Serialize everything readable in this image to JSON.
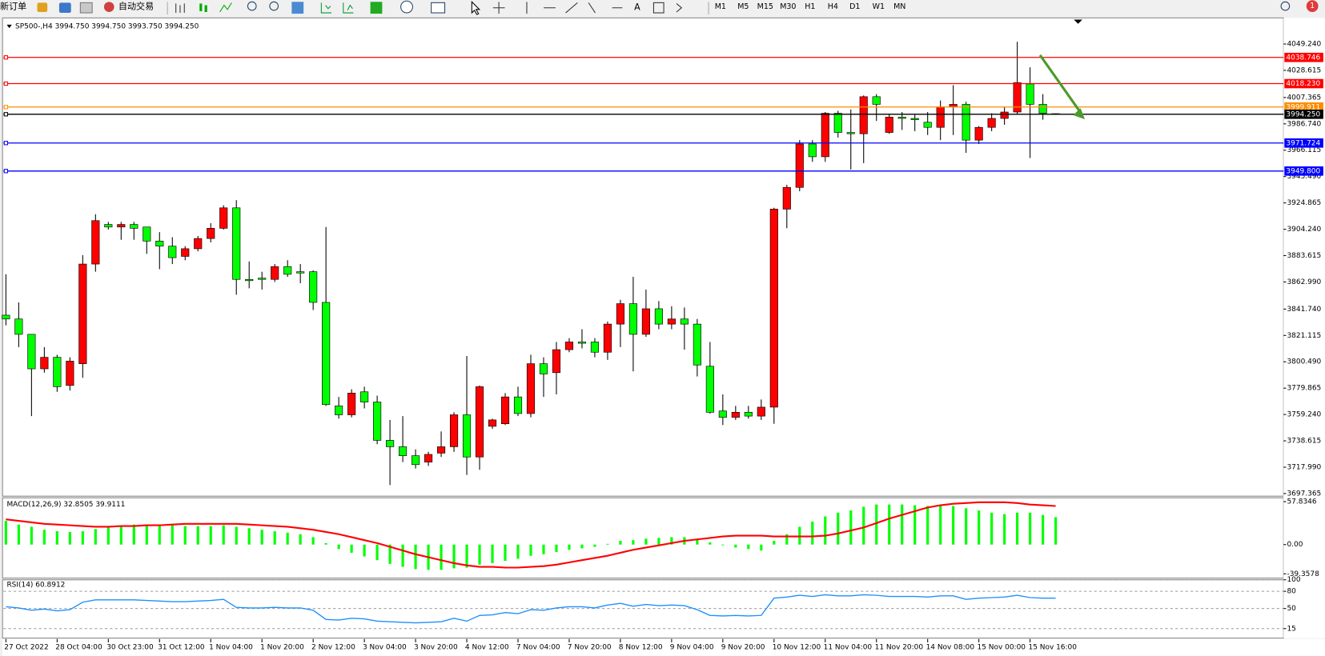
{
  "toolbar": {
    "new_order": "新订单",
    "auto_trading": "自动交易",
    "timeframes": [
      "M1",
      "M5",
      "M15",
      "M30",
      "H1",
      "H4",
      "D1",
      "W1",
      "MN"
    ],
    "notifications": "1"
  },
  "chart_data": [
    {
      "type": "candlestick",
      "title": "SP500-,H4  3994.750 3994.750 3993.750 3994.250",
      "categories": [
        "27 Oct 2022",
        null,
        null,
        null,
        "28 Oct 04:00",
        null,
        null,
        null,
        "30 Oct 23:00",
        null,
        null,
        null,
        "31 Oct 12:00",
        null,
        null,
        null,
        "1 Nov 04:00",
        null,
        null,
        null,
        "1 Nov 20:00",
        null,
        null,
        null,
        "2 Nov 12:00",
        null,
        null,
        null,
        "3 Nov 04:00",
        null,
        null,
        null,
        "3 Nov 20:00",
        null,
        null,
        null,
        "4 Nov 12:00",
        null,
        null,
        null,
        "7 Nov 04:00",
        null,
        null,
        null,
        "7 Nov 20:00",
        null,
        null,
        null,
        "8 Nov 12:00",
        null,
        null,
        null,
        "9 Nov 04:00",
        null,
        null,
        null,
        "9 Nov 20:00",
        null,
        null,
        null,
        "10 Nov 12:00",
        null,
        null,
        null,
        "11 Nov 04:00",
        null,
        null,
        null,
        "11 Nov 20:00",
        null,
        null,
        null,
        "14 Nov 08:00",
        null,
        null,
        null,
        "15 Nov 00:00",
        null,
        null,
        null,
        "15 Nov 16:00",
        null,
        null
      ],
      "open": [
        3837,
        3834,
        3822,
        3795,
        3804,
        3782,
        3799,
        3877,
        3908,
        3906,
        3908,
        3906,
        3895,
        3891,
        3883,
        3889,
        3897,
        3905,
        3921,
        3865,
        3866,
        3865,
        3875,
        3871,
        3871,
        3847,
        3766,
        3759,
        3777,
        3769,
        3739,
        3734,
        3727,
        3722,
        3729,
        3734,
        3759,
        3726,
        3750,
        3752,
        3773,
        3760,
        3799,
        3792,
        3810,
        3816,
        3816,
        3808,
        3830,
        3846,
        3822,
        3842,
        3830,
        3834,
        3830,
        3797,
        3762,
        3757,
        3761,
        3758,
        3765,
        3920,
        3937,
        3971,
        3961,
        3995,
        3980,
        3979,
        4008,
        3980,
        3992,
        3991,
        3988,
        3984,
        4000,
        4002,
        3974,
        3984,
        3991,
        3996,
        4018,
        4002,
        3994.75
      ],
      "high": [
        3869,
        3847,
        3822,
        3812,
        3806,
        3804,
        3884,
        3916,
        3910,
        3910,
        3910,
        3906,
        3902,
        3898,
        3891,
        3899,
        3909,
        3923,
        3927,
        3879,
        3871,
        3877,
        3880,
        3877,
        3872,
        3906,
        3773,
        3779,
        3781,
        3774,
        3755,
        3758,
        3732,
        3730,
        3746,
        3761,
        3805,
        3782,
        3756,
        3776,
        3781,
        3806,
        3804,
        3816,
        3819,
        3826,
        3819,
        3832,
        3849,
        3867,
        3857,
        3848,
        3844,
        3843,
        3834,
        3816,
        3775,
        3766,
        3766,
        3771,
        3921,
        3939,
        3974,
        3974,
        3996,
        3997,
        3998,
        4009,
        4010,
        3994,
        3996,
        3994,
        3996,
        4005,
        4017,
        4004,
        3985,
        3995,
        4000,
        4051,
        4031,
        4010,
        3994.75
      ],
      "low": [
        3829,
        3812,
        3758,
        3792,
        3777,
        3778,
        3788,
        3871,
        3904,
        3896,
        3896,
        3885,
        3873,
        3877,
        3880,
        3887,
        3894,
        3904,
        3853,
        3858,
        3857,
        3863,
        3867,
        3862,
        3841,
        3766,
        3756,
        3757,
        3764,
        3736,
        3704,
        3722,
        3717,
        3719,
        3726,
        3730,
        3712,
        3716,
        3748,
        3751,
        3758,
        3757,
        3773,
        3775,
        3808,
        3811,
        3804,
        3802,
        3812,
        3793,
        3820,
        3826,
        3826,
        3810,
        3789,
        3760,
        3751,
        3755,
        3756,
        3755,
        3752,
        3905,
        3934,
        3957,
        3957,
        3976,
        3951,
        3956,
        3989,
        3979,
        3982,
        3981,
        3978,
        3974,
        3978,
        3964,
        3971,
        3981,
        3986,
        3994,
        3960,
        3990,
        3993.75
      ],
      "close": [
        3834,
        3822,
        3795,
        3804,
        3781,
        3801,
        3877,
        3911,
        3906,
        3908,
        3905,
        3895,
        3891,
        3882,
        3889,
        3897,
        3905,
        3921,
        3865,
        3864,
        3865,
        3875,
        3869,
        3870,
        3847,
        3767,
        3759,
        3776,
        3769,
        3739,
        3734,
        3727,
        3720,
        3728,
        3734,
        3759,
        3726,
        3781,
        3755,
        3773,
        3760,
        3799,
        3791,
        3810,
        3816,
        3815,
        3808,
        3830,
        3846,
        3822,
        3842,
        3830,
        3834,
        3830,
        3798,
        3761,
        3757,
        3761,
        3758,
        3765,
        3920,
        3937,
        3971,
        3961,
        3995,
        3980,
        3979,
        4008,
        4002,
        3992,
        3991,
        3990,
        3984,
        4000,
        4002,
        3974,
        3984,
        3991,
        3996,
        4019,
        4002,
        3995,
        3994.25
      ],
      "up_color": "#ff0000",
      "down_color": "#00ff00",
      "ylim": [
        3696,
        4069
      ],
      "yticks": [
        {
          "value": 4049.24,
          "label": "4049.240"
        },
        4028.615,
        4007.365,
        {
          "value": 3986.74,
          "label": "3986.740"
        },
        3966.115,
        {
          "value": 3945.49,
          "label": "3945.490"
        },
        3924.865,
        {
          "value": 3904.24,
          "label": "3904.240"
        },
        3883.615,
        {
          "value": 3862.99,
          "label": "3862.990"
        },
        {
          "value": 3841.74,
          "label": "3841.740"
        },
        3821.115,
        {
          "value": 3800.49,
          "label": "3800.490"
        },
        3779.865,
        {
          "value": 3759.24,
          "label": "3759.240"
        },
        3738.615,
        {
          "value": 3717.99,
          "label": "3717.990"
        },
        3697.365
      ],
      "levels": [
        {
          "price": 4038.746,
          "color": "#ff0000"
        },
        {
          "price": {
            "value": 4018.23,
            "label": "4018.230"
          },
          "color": "#ff0000"
        },
        {
          "price": 3999.911,
          "color": "#ff8c00"
        },
        {
          "price": {
            "value": 3994.25,
            "label": "3994.250"
          },
          "color": "#000000"
        },
        {
          "price": 3971.724,
          "color": "#0000ff"
        },
        {
          "price": {
            "value": 3949.8,
            "label": "3949.800"
          },
          "color": "#0000ff"
        }
      ]
    },
    {
      "type": "macd",
      "title": "MACD(12,26,9) 32.8505 39.9111",
      "histogram": [
        32,
        27,
        24,
        20,
        18,
        17,
        18,
        21,
        24,
        26,
        27,
        27,
        27,
        26,
        25,
        25,
        25,
        26,
        24,
        22,
        20,
        18,
        16,
        14,
        10,
        2,
        -6,
        -11,
        -16,
        -21,
        -26,
        -30,
        -33,
        -34,
        -34,
        -32,
        -31,
        -27,
        -25,
        -22,
        -19,
        -15,
        -13,
        -10,
        -7,
        -5,
        -3,
        1,
        5,
        6,
        8,
        9,
        10,
        10,
        8,
        3,
        -1,
        -4,
        -6,
        -8,
        5,
        14,
        24,
        31,
        38,
        43,
        46,
        51,
        54,
        54,
        54,
        53,
        52,
        52,
        52,
        49,
        46,
        43,
        41,
        43,
        43,
        40,
        37
      ],
      "signal": [
        34,
        32,
        30,
        28,
        27,
        26,
        25,
        24,
        24,
        25,
        25,
        26,
        26,
        27,
        28,
        28,
        28,
        28,
        28,
        27,
        26,
        25,
        24,
        22,
        20,
        17,
        14,
        10,
        6,
        2,
        -3,
        -8,
        -13,
        -17,
        -21,
        -25,
        -28,
        -30,
        -30,
        -31,
        -31,
        -30,
        -29,
        -27,
        -24,
        -21,
        -18,
        -15,
        -11,
        -7,
        -4,
        -1,
        2,
        5,
        7,
        9,
        11,
        12,
        12,
        12,
        11,
        11,
        11,
        11,
        12,
        15,
        19,
        23,
        29,
        35,
        40,
        45,
        50,
        53,
        55,
        56,
        57,
        57,
        57,
        56,
        54,
        53,
        52
      ],
      "histogram_color": "#00ff00",
      "signal_color": "#ff0000",
      "ylim": [
        -44,
        63
      ],
      "yticks": [
        57.8346,
        {
          "value": 0,
          "label": "0.00"
        },
        -39.3578
      ]
    },
    {
      "type": "rsi",
      "title": "RSI(14) 60.8912",
      "values": [
        53,
        51,
        47,
        49,
        46,
        48,
        61,
        65,
        65,
        65,
        65,
        64,
        63,
        62,
        62,
        63,
        64,
        66,
        52,
        51,
        51,
        52,
        51,
        51,
        47,
        31,
        30,
        33,
        32,
        28,
        27,
        26,
        25,
        26,
        27,
        33,
        28,
        38,
        39,
        43,
        41,
        48,
        47,
        51,
        53,
        53,
        51,
        56,
        59,
        54,
        57,
        55,
        56,
        55,
        48,
        38,
        37,
        38,
        37,
        38,
        68,
        70,
        73,
        71,
        74,
        72,
        72,
        74,
        73,
        71,
        71,
        71,
        70,
        72,
        72,
        66,
        68,
        69,
        70,
        73,
        69,
        68,
        68
      ],
      "color": "#1e90ff",
      "ylim": [
        0,
        100
      ],
      "yticks": [
        100,
        80,
        50,
        15
      ],
      "grid": true
    }
  ]
}
